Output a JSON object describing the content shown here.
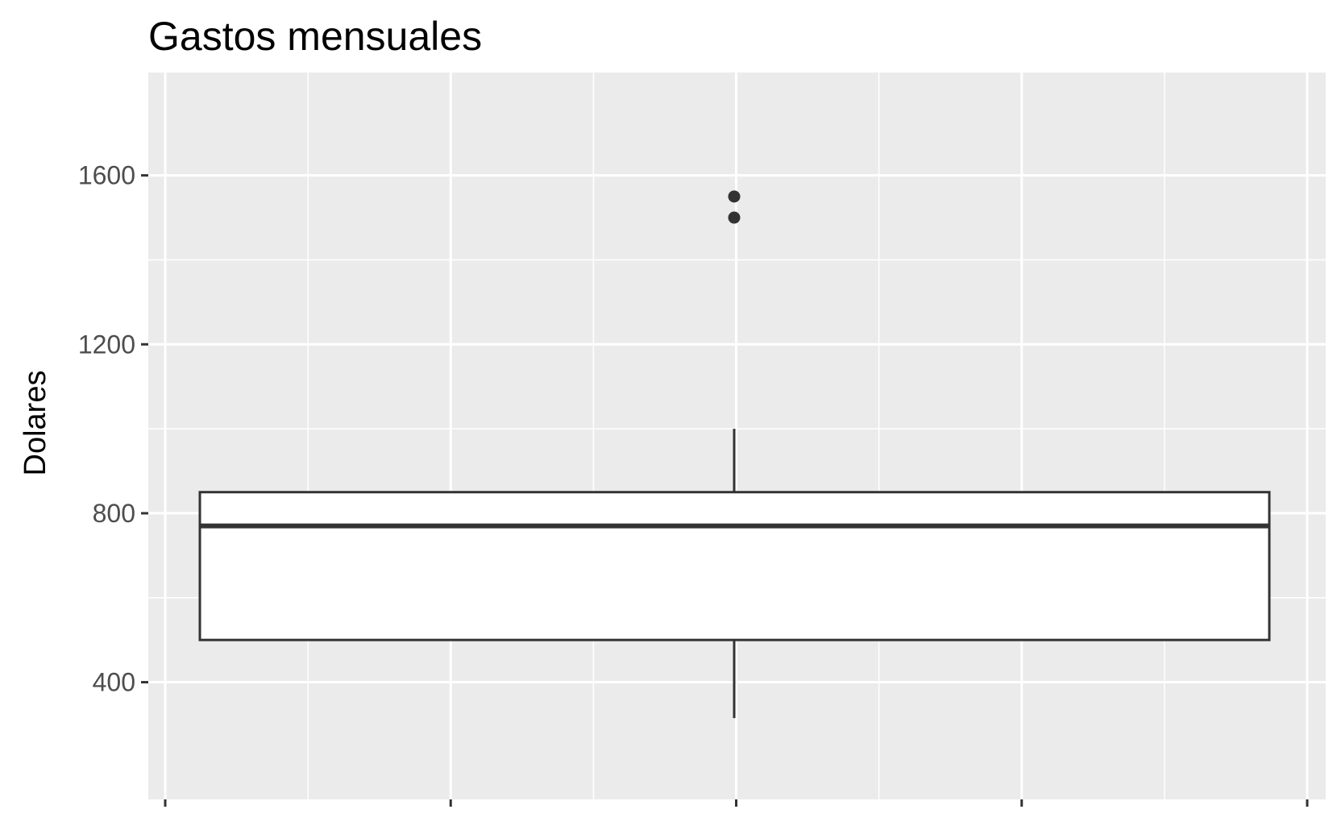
{
  "chart_data": {
    "type": "boxplot",
    "title": "Gastos mensuales",
    "xlabel": "",
    "ylabel": "Dolares",
    "ylim": [
      232,
      1600
    ],
    "yticks": [
      400,
      800,
      1200,
      1600
    ],
    "y_minor_gridlines": [
      600,
      1000,
      1400
    ],
    "grid": true,
    "legend": "none",
    "x_ticks_count": 5,
    "x_minor_gridlines_count": 4,
    "box": {
      "q1": 500,
      "median": 770,
      "q3": 850,
      "whisker_low": 315,
      "whisker_high": 1000,
      "outliers": [
        1500,
        1550
      ]
    },
    "colors": {
      "panel_background": "#ebebeb",
      "grid_line": "#ffffff",
      "box_fill": "#ffffff",
      "box_stroke": "#333333",
      "outlier": "#333333",
      "tick_label": "#4d4d4d",
      "tick_mark": "#333333"
    }
  }
}
